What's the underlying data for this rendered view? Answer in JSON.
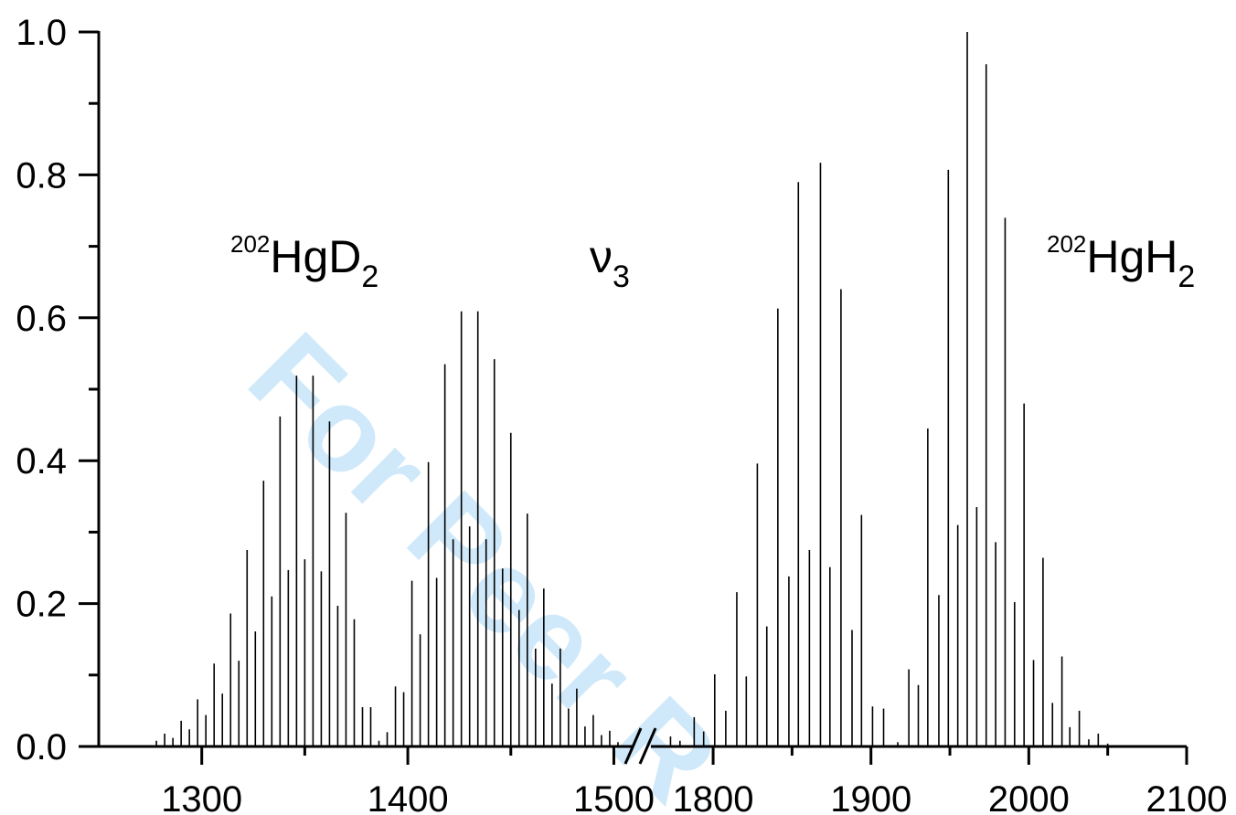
{
  "chart_data": {
    "type": "stick spectrum",
    "x_segments": [
      {
        "range": [
          1250,
          1510
        ],
        "ticks": [
          1300,
          1400,
          1500
        ]
      },
      {
        "range": [
          1760,
          2100
        ],
        "ticks": [
          1800,
          1900,
          2000,
          2100
        ]
      }
    ],
    "ylim": [
      0,
      1.0
    ],
    "yticks": [
      "0.0",
      "0.2",
      "0.4",
      "0.6",
      "0.8",
      "1.0"
    ],
    "axis_break": true,
    "annotations": {
      "hgd2": {
        "mass": "202",
        "formula": "HgD",
        "subscript": "2"
      },
      "nu": {
        "symbol": "ν",
        "subscript": "3"
      },
      "hgh2": {
        "mass": "202",
        "formula": "HgH",
        "subscript": "2"
      }
    },
    "watermark": "For Peer R",
    "series": [
      {
        "values": [
          [
            1278,
            0.008
          ],
          [
            1282,
            0.018
          ],
          [
            1286,
            0.012
          ],
          [
            1290,
            0.036
          ],
          [
            1294,
            0.024
          ],
          [
            1298,
            0.066
          ],
          [
            1302,
            0.044
          ],
          [
            1306,
            0.116
          ],
          [
            1310,
            0.074
          ],
          [
            1314,
            0.186
          ],
          [
            1318,
            0.12
          ],
          [
            1322,
            0.275
          ],
          [
            1326,
            0.161
          ],
          [
            1330,
            0.372
          ],
          [
            1334,
            0.21
          ],
          [
            1338,
            0.462
          ],
          [
            1342,
            0.247
          ],
          [
            1346,
            0.519
          ],
          [
            1350,
            0.262
          ],
          [
            1354,
            0.519
          ],
          [
            1358,
            0.245
          ],
          [
            1362,
            0.455
          ],
          [
            1366,
            0.197
          ],
          [
            1370,
            0.327
          ],
          [
            1374,
            0.178
          ],
          [
            1378,
            0.055
          ],
          [
            1382,
            0.055
          ],
          [
            1386,
            0.008
          ],
          [
            1390,
            0.02
          ],
          [
            1394,
            0.084
          ],
          [
            1398,
            0.076
          ],
          [
            1402,
            0.232
          ],
          [
            1406,
            0.157
          ],
          [
            1410,
            0.398
          ],
          [
            1414,
            0.236
          ],
          [
            1418,
            0.535
          ],
          [
            1422,
            0.29
          ],
          [
            1426,
            0.609
          ],
          [
            1430,
            0.308
          ],
          [
            1434,
            0.609
          ],
          [
            1438,
            0.29
          ],
          [
            1442,
            0.542
          ],
          [
            1446,
            0.249
          ],
          [
            1450,
            0.439
          ],
          [
            1454,
            0.191
          ],
          [
            1458,
            0.326
          ],
          [
            1462,
            0.137
          ],
          [
            1466,
            0.221
          ],
          [
            1470,
            0.088
          ],
          [
            1474,
            0.137
          ],
          [
            1478,
            0.053
          ],
          [
            1482,
            0.081
          ],
          [
            1486,
            0.028
          ],
          [
            1490,
            0.044
          ],
          [
            1494,
            0.016
          ],
          [
            1498,
            0.022
          ],
          [
            1502,
            0.006
          ]
        ]
      },
      {
        "values": [
          [
            1773,
            0.014
          ],
          [
            1779,
            0.008
          ],
          [
            1788,
            0.041
          ],
          [
            1794,
            0.021
          ],
          [
            1801,
            0.101
          ],
          [
            1808,
            0.05
          ],
          [
            1815,
            0.216
          ],
          [
            1821,
            0.098
          ],
          [
            1828,
            0.396
          ],
          [
            1834,
            0.168
          ],
          [
            1841,
            0.613
          ],
          [
            1848,
            0.238
          ],
          [
            1854,
            0.79
          ],
          [
            1861,
            0.275
          ],
          [
            1868,
            0.817
          ],
          [
            1874,
            0.251
          ],
          [
            1881,
            0.64
          ],
          [
            1888,
            0.163
          ],
          [
            1894,
            0.324
          ],
          [
            1901,
            0.056
          ],
          [
            1908,
            0.053
          ],
          [
            1917,
            0.006
          ],
          [
            1924,
            0.108
          ],
          [
            1930,
            0.086
          ],
          [
            1936,
            0.445
          ],
          [
            1943,
            0.212
          ],
          [
            1949,
            0.807
          ],
          [
            1955,
            0.31
          ],
          [
            1961,
            1.0
          ],
          [
            1967,
            0.335
          ],
          [
            1973,
            0.955
          ],
          [
            1979,
            0.286
          ],
          [
            1985,
            0.74
          ],
          [
            1991,
            0.202
          ],
          [
            1997,
            0.48
          ],
          [
            2003,
            0.121
          ],
          [
            2009,
            0.264
          ],
          [
            2015,
            0.061
          ],
          [
            2021,
            0.126
          ],
          [
            2026,
            0.027
          ],
          [
            2032,
            0.05
          ],
          [
            2038,
            0.01
          ],
          [
            2044,
            0.018
          ],
          [
            2050,
            0.004
          ]
        ]
      }
    ]
  }
}
